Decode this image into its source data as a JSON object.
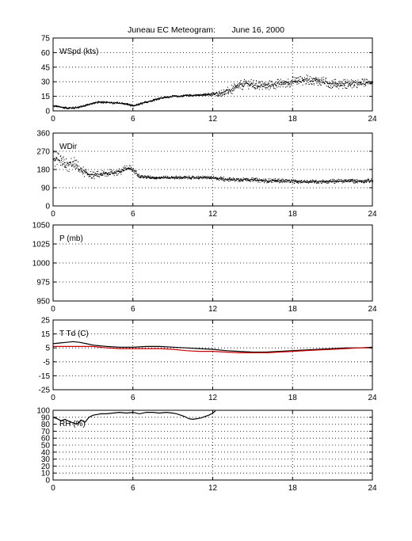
{
  "title": "Juneau EC Meteogram:       June 16, 2000",
  "chart_data": [
    {
      "type": "scatter",
      "panel_label": "WSpd (kts)",
      "xlim": [
        0,
        24
      ],
      "xticks": [
        "0",
        "6",
        "12",
        "18",
        "24"
      ],
      "ylim": [
        0,
        75
      ],
      "yticks": [
        "0",
        "15",
        "30",
        "45",
        "60",
        "75"
      ],
      "grid": true,
      "series": [
        {
          "color": "#000000",
          "style": "dots",
          "x": [
            0,
            0.5,
            1,
            1.5,
            2,
            2.5,
            3,
            3.5,
            4,
            4.5,
            5,
            5.5,
            6,
            6.5,
            7,
            7.5,
            8,
            8.5,
            9,
            9.5,
            10,
            10.5,
            11,
            11.5,
            12,
            12.5,
            13,
            13.5,
            14,
            14.5,
            15,
            15.5,
            16,
            16.5,
            17,
            17.5,
            18,
            18.5,
            19,
            19.5,
            20,
            20.5,
            21,
            21.5,
            22,
            22.5,
            23,
            23.5,
            24
          ],
          "y": [
            5,
            4,
            3,
            3,
            4,
            6,
            8,
            9,
            9,
            8,
            8,
            7,
            5,
            7,
            9,
            11,
            13,
            14,
            15,
            15,
            16,
            16,
            16,
            17,
            17,
            18,
            20,
            22,
            26,
            28,
            27,
            26,
            26,
            27,
            28,
            29,
            30,
            31,
            32,
            32,
            31,
            29,
            28,
            27,
            28,
            28,
            28,
            29,
            29
          ],
          "jitter": [
            1,
            1,
            1,
            1,
            1,
            1,
            1,
            1,
            1,
            1,
            1,
            1,
            1,
            1,
            1,
            1,
            1,
            1,
            1,
            1,
            1,
            1,
            1,
            1,
            2,
            3,
            4,
            5,
            5,
            5,
            5,
            5,
            5,
            5,
            5,
            5,
            5,
            5,
            5,
            5,
            5,
            5,
            5,
            5,
            5,
            5,
            5,
            4,
            4
          ]
        }
      ]
    },
    {
      "type": "scatter",
      "panel_label": "WDir",
      "xlim": [
        0,
        24
      ],
      "xticks": [
        "0",
        "6",
        "12",
        "18",
        "24"
      ],
      "ylim": [
        0,
        360
      ],
      "yticks": [
        "0",
        "90",
        "180",
        "270",
        "360"
      ],
      "grid": true,
      "series": [
        {
          "color": "#000000",
          "style": "dots",
          "x": [
            0,
            0.5,
            1,
            1.5,
            2,
            2.5,
            3,
            3.5,
            4,
            4.5,
            5,
            5.5,
            6,
            6.5,
            7,
            7.5,
            8,
            8.5,
            9,
            9.5,
            10,
            10.5,
            11,
            11.5,
            12,
            12.5,
            13,
            13.5,
            14,
            14.5,
            15,
            15.5,
            16,
            16.5,
            17,
            17.5,
            18,
            18.5,
            19,
            19.5,
            20,
            20.5,
            21,
            21.5,
            22,
            22.5,
            23,
            23.5,
            24
          ],
          "y": [
            235,
            215,
            200,
            210,
            180,
            160,
            150,
            155,
            160,
            165,
            170,
            185,
            180,
            145,
            142,
            140,
            140,
            140,
            140,
            140,
            140,
            140,
            140,
            140,
            138,
            135,
            132,
            130,
            130,
            132,
            128,
            126,
            124,
            125,
            124,
            123,
            122,
            121,
            120,
            120,
            121,
            121,
            122,
            122,
            122,
            123,
            123,
            124,
            124
          ],
          "jitter": [
            40,
            40,
            35,
            35,
            30,
            18,
            18,
            18,
            18,
            18,
            20,
            20,
            15,
            8,
            8,
            8,
            8,
            8,
            8,
            8,
            8,
            8,
            8,
            8,
            10,
            10,
            10,
            10,
            10,
            10,
            10,
            10,
            10,
            10,
            10,
            10,
            10,
            10,
            10,
            10,
            10,
            10,
            10,
            10,
            10,
            10,
            10,
            10,
            10
          ]
        }
      ]
    },
    {
      "type": "line",
      "panel_label": "P (mb)",
      "xlim": [
        0,
        24
      ],
      "xticks": [
        "0",
        "6",
        "12",
        "18",
        "24"
      ],
      "ylim": [
        950,
        1050
      ],
      "yticks": [
        "950",
        "975",
        "1000",
        "1025",
        "1050"
      ],
      "grid": true,
      "series": []
    },
    {
      "type": "line",
      "panel_label": "T Td (C)",
      "xlim": [
        0,
        24
      ],
      "xticks": [
        "0",
        "6",
        "12",
        "18",
        "24"
      ],
      "ylim": [
        -25,
        25
      ],
      "yticks": [
        "-25",
        "-15",
        "-5",
        "5",
        "15",
        "25"
      ],
      "grid": true,
      "series": [
        {
          "color": "#000000",
          "x": [
            0,
            0.5,
            1,
            1.5,
            2,
            2.5,
            3,
            4,
            5,
            6,
            7,
            8,
            9,
            10,
            11,
            12,
            13,
            14,
            15,
            16,
            17,
            18,
            19,
            20,
            21,
            22,
            23,
            24
          ],
          "y": [
            8,
            8.5,
            9,
            9.5,
            9,
            8,
            7,
            6,
            5.5,
            5.5,
            6,
            6,
            5.5,
            5,
            4.5,
            4,
            3,
            2.5,
            2,
            2,
            2.5,
            3,
            3.5,
            4,
            4.5,
            5,
            5,
            5.5
          ]
        },
        {
          "color": "#cc0000",
          "x": [
            0,
            1,
            2,
            3,
            4,
            5,
            6,
            7,
            8,
            9,
            10,
            11,
            12,
            13,
            14,
            15,
            16,
            17,
            18,
            19,
            20,
            21,
            22,
            23,
            24
          ],
          "y": [
            6,
            6,
            6,
            6,
            5,
            4.5,
            4.5,
            4.5,
            4.5,
            4,
            3,
            2.5,
            2.5,
            2,
            1.5,
            1.5,
            1.5,
            2,
            2.5,
            3,
            3.5,
            4,
            4.5,
            5,
            5
          ]
        }
      ]
    },
    {
      "type": "line",
      "panel_label": "RH (%)",
      "xlim": [
        0,
        24
      ],
      "xticks": [
        "0",
        "6",
        "12",
        "18",
        "24"
      ],
      "ylim": [
        0,
        100
      ],
      "yticks": [
        "0",
        "10",
        "20",
        "30",
        "40",
        "50",
        "60",
        "70",
        "80",
        "90",
        "100"
      ],
      "grid": true,
      "series": [
        {
          "color": "#000000",
          "x": [
            0,
            0.3,
            0.6,
            0.9,
            1.2,
            1.5,
            1.8,
            2.1,
            2.4,
            2.7,
            3,
            3.3,
            3.6,
            4,
            4.5,
            5,
            5.5,
            6,
            6.5,
            7,
            7.5,
            8,
            8.5,
            9,
            9.3,
            9.6,
            9.9,
            10.2,
            10.5,
            10.8,
            11.1,
            11.4,
            11.7,
            12,
            12.2
          ],
          "y": [
            90,
            88,
            85,
            87,
            84,
            82,
            80,
            86,
            83,
            90,
            93,
            94,
            95,
            95,
            96,
            97,
            96,
            97,
            95,
            97,
            97,
            96,
            97,
            96,
            95,
            93,
            91,
            88,
            87,
            88,
            89,
            91,
            93,
            96,
            99
          ]
        }
      ]
    }
  ]
}
